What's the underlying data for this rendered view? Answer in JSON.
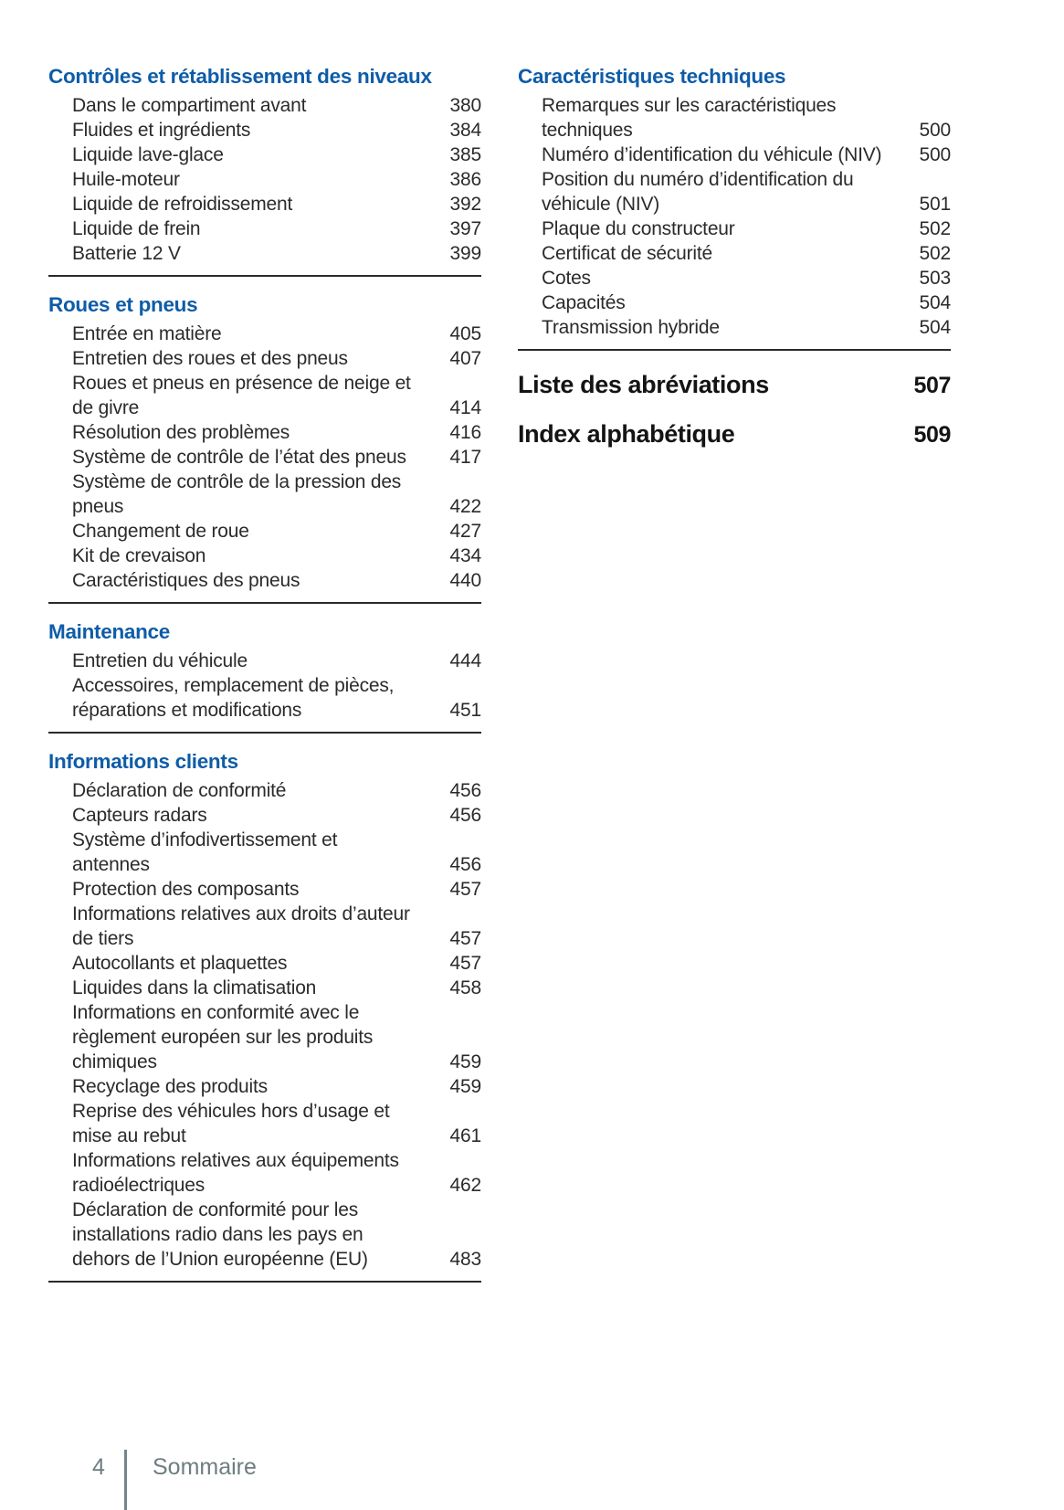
{
  "document": {
    "bullet": "—",
    "colors": {
      "heading_blue": "#0e5ca8",
      "body_text": "#2b2b2b",
      "major_entry_black": "#141414",
      "divider": "#2a2a2a",
      "footer_gray": "#6e7d80"
    },
    "footer": {
      "page_number": "4",
      "section_label": "Sommaire"
    },
    "columns": [
      {
        "sections": [
          {
            "title": "Contrôles et rétablissement des niveaux",
            "items": [
              {
                "label": "Dans le compartiment avant",
                "page": "380"
              },
              {
                "label": "Fluides et ingrédients",
                "page": "384"
              },
              {
                "label": "Liquide lave-glace",
                "page": "385"
              },
              {
                "label": "Huile-moteur",
                "page": "386"
              },
              {
                "label": "Liquide de refroidissement",
                "page": "392"
              },
              {
                "label": "Liquide de frein",
                "page": "397"
              },
              {
                "label": "Batterie 12 V",
                "page": "399"
              }
            ]
          },
          {
            "title": "Roues et pneus",
            "items": [
              {
                "label": "Entrée en matière",
                "page": "405"
              },
              {
                "label": "Entretien des roues et des pneus",
                "page": "407"
              },
              {
                "label": "Roues et pneus en présence de neige et de givre",
                "page": "414"
              },
              {
                "label": "Résolution des problèmes",
                "page": "416"
              },
              {
                "label": "Système de contrôle de l’état des pneus",
                "page": "417"
              },
              {
                "label": "Système de contrôle de la pression des pneus",
                "page": "422"
              },
              {
                "label": "Changement de roue",
                "page": "427"
              },
              {
                "label": "Kit de crevaison",
                "page": "434"
              },
              {
                "label": "Caractéristiques des pneus",
                "page": "440"
              }
            ]
          },
          {
            "title": "Maintenance",
            "items": [
              {
                "label": "Entretien du véhicule",
                "page": "444"
              },
              {
                "label": "Accessoires, remplacement de pièces, réparations et modifications",
                "page": "451"
              }
            ]
          },
          {
            "title": "Informations clients",
            "items": [
              {
                "label": "Déclaration de conformité",
                "page": "456"
              },
              {
                "label": "Capteurs radars",
                "page": "456"
              },
              {
                "label": "Système d’infodivertissement et antennes",
                "page": "456"
              },
              {
                "label": "Protection des composants",
                "page": "457"
              },
              {
                "label": "Informations relatives aux droits d’auteur de tiers",
                "page": "457"
              },
              {
                "label": "Autocollants et plaquettes",
                "page": "457"
              },
              {
                "label": "Liquides dans la climatisation",
                "page": "458"
              },
              {
                "label": "Informations en conformité avec le règlement européen sur les produits chimiques",
                "page": "459"
              },
              {
                "label": "Recyclage des produits",
                "page": "459"
              },
              {
                "label": "Reprise des véhicules hors d’usage et mise au rebut",
                "page": "461"
              },
              {
                "label": "Informations relatives aux équipements radioélectriques",
                "page": "462"
              },
              {
                "label": "Déclaration de conformité pour les installations radio dans les pays en dehors de l’Union européenne (EU)",
                "page": "483"
              }
            ]
          }
        ],
        "major_entries": []
      },
      {
        "sections": [
          {
            "title": "Caractéristiques techniques",
            "items": [
              {
                "label": "Remarques sur les caractéristiques techniques",
                "page": "500"
              },
              {
                "label": "Numéro d’identification du véhicule (NIV)",
                "page": "500"
              },
              {
                "label": "Position du numéro d’identification du véhicule (NIV)",
                "page": "501"
              },
              {
                "label": "Plaque du constructeur",
                "page": "502"
              },
              {
                "label": "Certificat de sécurité",
                "page": "502"
              },
              {
                "label": "Cotes",
                "page": "503"
              },
              {
                "label": "Capacités",
                "page": "504"
              },
              {
                "label": "Transmission hybride",
                "page": "504"
              }
            ]
          }
        ],
        "major_entries": [
          {
            "label": "Liste des abréviations",
            "page": "507"
          },
          {
            "label": "Index alphabétique",
            "page": "509"
          }
        ]
      }
    ]
  }
}
